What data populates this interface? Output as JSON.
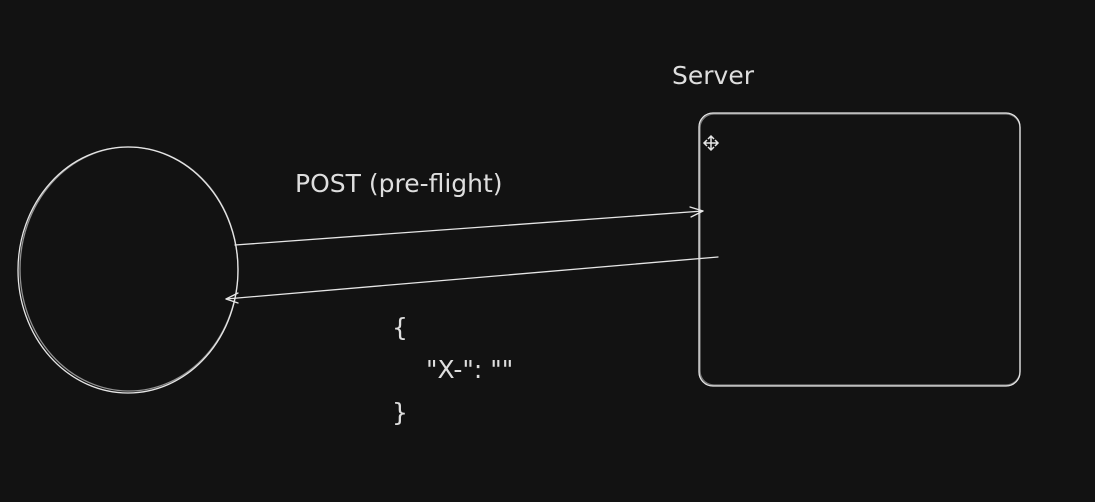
{
  "labels": {
    "server": "Server",
    "request": "POST (pre-flight)"
  },
  "payload": {
    "lines": [
      "{",
      "\"X-\": \"\"",
      "}"
    ]
  }
}
